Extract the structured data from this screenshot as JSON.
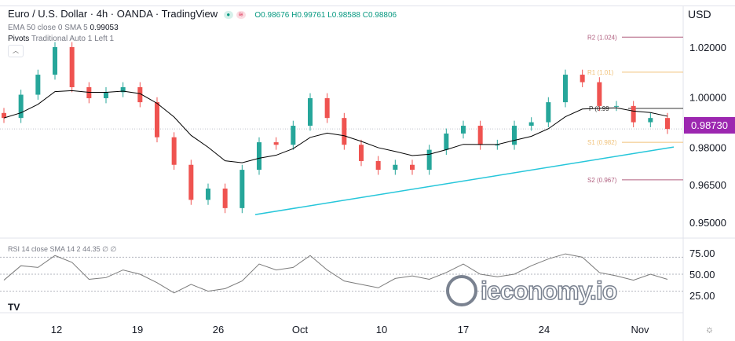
{
  "header": {
    "symbol": "Euro / U.S. Dollar",
    "interval": "4h",
    "broker": "OANDA",
    "source": "TradingView",
    "ohlc": "O0.98676 H0.99761 L0.98588 C0.98806",
    "ema_label": "EMA 50 close 0 SMA 5",
    "ema_value": "0.99053",
    "pivots_label": "Pivots",
    "pivots_params": "Traditional Auto 1 Left 1",
    "rsi_label": "RSI 14 close SMA 14 2",
    "rsi_value": "44.35 ∅ ∅"
  },
  "colors": {
    "up": "#26a69a",
    "down": "#ef5350",
    "ema": "#000000",
    "trendline": "#26c6da",
    "price_tag": "#9c27b0",
    "pivot_r": "#b05f7f",
    "pivot_r1": "#f0c27a",
    "pivot_p": "#333333",
    "rsi": "#7b7b7b"
  },
  "watermark": "ieconomy.io",
  "chart_data": [
    {
      "type": "candlestick",
      "currency": "USD",
      "ylim": [
        0.945,
        1.032
      ],
      "yticks": [
        "1.02000",
        "1.00000",
        "0.98000",
        "0.96500",
        "0.95000"
      ],
      "ytick_values": [
        1.02,
        1.0,
        0.98,
        0.965,
        0.95
      ],
      "xticks": [
        "12",
        "19",
        "26",
        "Oct",
        "10",
        "17",
        "24",
        "Nov"
      ],
      "closes": [
        0.9917,
        1.001,
        1.009,
        1.02,
        1.004,
        0.9996,
        1.002,
        1.004,
        0.998,
        0.984,
        0.973,
        0.959,
        0.9635,
        0.9557,
        0.971,
        0.982,
        0.981,
        0.9886,
        0.9996,
        0.9917,
        0.981,
        0.9745,
        0.971,
        0.973,
        0.971,
        0.979,
        0.9855,
        0.9886,
        0.981,
        0.981,
        0.9886,
        0.99,
        0.998,
        1.009,
        1.006,
        0.9965,
        0.9965,
        0.99,
        0.9917,
        0.9873
      ],
      "last_price": "0.98730",
      "pivots": [
        {
          "label": "R2 (1.024)",
          "value": 1.024
        },
        {
          "label": "R1 (1.01)",
          "value": 1.01
        },
        {
          "label": "P (0.99",
          "value": 0.9955
        },
        {
          "label": "S1 (0.982)",
          "value": 0.982
        },
        {
          "label": "S2 (0.967)",
          "value": 0.967
        }
      ],
      "trendline": [
        0.9531,
        0.9801
      ]
    },
    {
      "type": "line",
      "name": "RSI",
      "ylim": [
        0,
        100
      ],
      "yticks": [
        "75.00",
        "50.00",
        "25.00"
      ],
      "bands": [
        70,
        50,
        30
      ],
      "values": [
        43,
        60,
        58,
        72,
        64,
        44,
        46,
        55,
        50,
        40,
        28,
        38,
        30,
        33,
        42,
        62,
        55,
        58,
        72,
        55,
        42,
        38,
        34,
        45,
        48,
        44,
        52,
        62,
        50,
        47,
        50,
        60,
        68,
        74,
        70,
        52,
        48,
        43,
        50,
        44
      ]
    }
  ]
}
